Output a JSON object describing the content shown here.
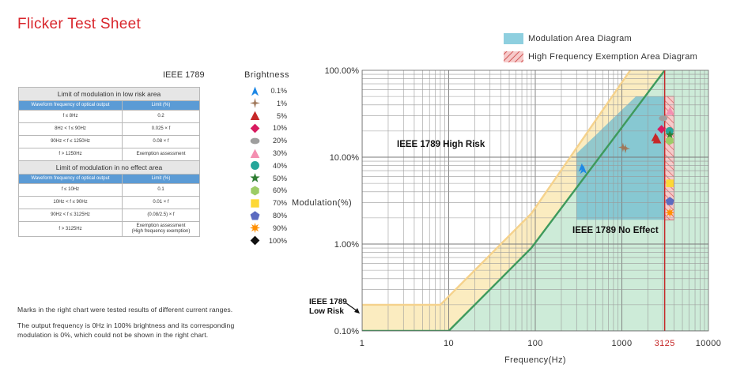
{
  "title": "Flicker Test Sheet",
  "ieee_label": "IEEE 1789",
  "table": {
    "low_risk_title": "Limit of modulation in low risk area",
    "no_effect_title": "Limit of modulation in no effect area",
    "col_freq": "Waveform frequency of optical output",
    "col_limit": "Limit (%)",
    "low_risk_rows": [
      {
        "freq": "f ≤ 8Hz",
        "limit": "0.2"
      },
      {
        "freq": "8Hz < f ≤ 90Hz",
        "limit": "0.025 × f"
      },
      {
        "freq": "90Hz < f ≤ 1250Hz",
        "limit": "0.08 × f"
      },
      {
        "freq": "f > 1250Hz",
        "limit": "Exemption assessment"
      }
    ],
    "no_effect_rows": [
      {
        "freq": "f ≤ 10Hz",
        "limit": "0.1"
      },
      {
        "freq": "10Hz < f ≤ 90Hz",
        "limit": "0.01 × f"
      },
      {
        "freq": "90Hz < f ≤ 3125Hz",
        "limit": "(0.08/2.5) × f"
      },
      {
        "freq": "f > 3125Hz",
        "limit": "Exemption assessment",
        "limit2": "(High frequency exemption)"
      }
    ]
  },
  "legend": {
    "title": "Brightness",
    "items": [
      {
        "label": "0.1%",
        "shape": "tri-y-icon",
        "color": "#1e88e5"
      },
      {
        "label": "1%",
        "shape": "cross-star-icon",
        "color": "#a0785a"
      },
      {
        "label": "5%",
        "shape": "triangle-icon",
        "color": "#c62828"
      },
      {
        "label": "10%",
        "shape": "diamond-icon",
        "color": "#d81b60"
      },
      {
        "label": "20%",
        "shape": "ellipse-icon",
        "color": "#9e9e9e"
      },
      {
        "label": "30%",
        "shape": "triangle-icon",
        "color": "#f48fb1"
      },
      {
        "label": "40%",
        "shape": "circle-icon",
        "color": "#26a69a"
      },
      {
        "label": "50%",
        "shape": "star-icon",
        "color": "#2e7d32"
      },
      {
        "label": "60%",
        "shape": "hexagon-icon",
        "color": "#9ccc65"
      },
      {
        "label": "70%",
        "shape": "square-icon",
        "color": "#fdd835"
      },
      {
        "label": "80%",
        "shape": "pentagon-icon",
        "color": "#5c6bc0"
      },
      {
        "label": "90%",
        "shape": "asterisk-icon",
        "color": "#ff8f00"
      },
      {
        "label": "100%",
        "shape": "diamond-icon",
        "color": "#111111"
      }
    ]
  },
  "notes": [
    "Marks in the right chart were tested results of different current ranges.",
    "The output frequency is 0Hz in 100% brightness and its corresponding",
    "modulation is 0%, which could not be shown in the right chart."
  ],
  "chart_data": {
    "type": "scatter",
    "xlabel": "Frequency(Hz)",
    "ylabel": "Modulation(%)",
    "x_scale": "log",
    "y_scale": "log",
    "xlim": [
      1,
      10000
    ],
    "ylim": [
      0.1,
      100
    ],
    "x_ticks": [
      {
        "value": 1,
        "label": "1"
      },
      {
        "value": 10,
        "label": "10"
      },
      {
        "value": 100,
        "label": "100"
      },
      {
        "value": 1000,
        "label": "1000"
      },
      {
        "value": 3125,
        "label": "3125"
      },
      {
        "value": 10000,
        "label": "10000"
      }
    ],
    "y_ticks": [
      {
        "value": 100,
        "label": "100.00%"
      },
      {
        "value": 10,
        "label": "10.00%"
      },
      {
        "value": 1,
        "label": "1.00%"
      },
      {
        "value": 0.1,
        "label": "0.10%"
      }
    ],
    "grid": true,
    "legend_position": "top-right",
    "areas": [
      {
        "name": "Modulation Area Diagram",
        "color": "#8ecfdf"
      },
      {
        "name": "High Frequency Exemption Area Diagram",
        "color": "#e8a8a8"
      }
    ],
    "region_labels": {
      "high_risk": "IEEE 1789 High Risk",
      "no_effect": "IEEE 1789 No Effect",
      "low_risk_line1": "IEEE 1789",
      "low_risk_line2": "Low Risk"
    },
    "low_risk_limit": [
      [
        1,
        0.2
      ],
      [
        8,
        0.2
      ],
      [
        90,
        2.25
      ],
      [
        1250,
        100
      ]
    ],
    "no_effect_limit": [
      [
        1,
        0.1
      ],
      [
        10,
        0.1
      ],
      [
        90,
        0.9
      ],
      [
        3125,
        100
      ]
    ],
    "modulation_area": [
      [
        300,
        11
      ],
      [
        1450,
        50
      ],
      [
        3125,
        50
      ],
      [
        3125,
        1.9
      ],
      [
        300,
        1.9
      ]
    ],
    "exemption_band": [
      3125,
      4000
    ],
    "points": [
      {
        "brightness": "0.1%",
        "x": 345,
        "y": 7.6
      },
      {
        "brightness": "0.1%",
        "x": 360,
        "y": 7.2
      },
      {
        "brightness": "1%",
        "x": 1030,
        "y": 13
      },
      {
        "brightness": "1%",
        "x": 1100,
        "y": 12.5
      },
      {
        "brightness": "5%",
        "x": 2450,
        "y": 17
      },
      {
        "brightness": "5%",
        "x": 2550,
        "y": 16
      },
      {
        "brightness": "10%",
        "x": 2870,
        "y": 21
      },
      {
        "brightness": "20%",
        "x": 3000,
        "y": 28
      },
      {
        "brightness": "30%",
        "x": 3600,
        "y": 34
      },
      {
        "brightness": "40%",
        "x": 3550,
        "y": 20
      },
      {
        "brightness": "50%",
        "x": 3580,
        "y": 18
      },
      {
        "brightness": "60%",
        "x": 3560,
        "y": 15.5
      },
      {
        "brightness": "70%",
        "x": 3580,
        "y": 5
      },
      {
        "brightness": "80%",
        "x": 3580,
        "y": 3.1
      },
      {
        "brightness": "90%",
        "x": 3580,
        "y": 2.3
      }
    ]
  }
}
